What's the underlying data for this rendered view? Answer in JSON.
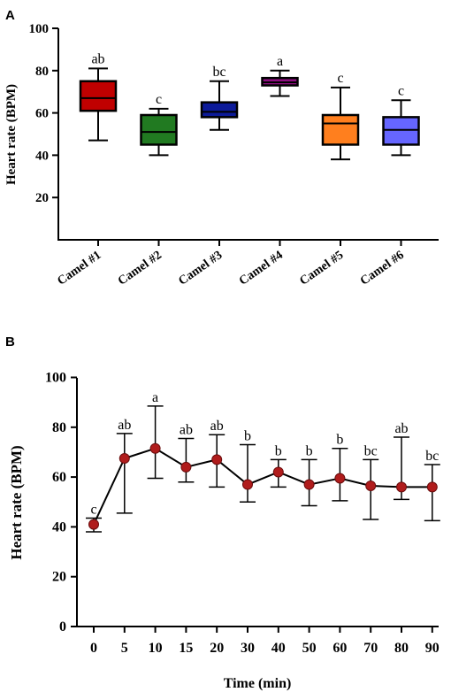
{
  "chart_data": [
    {
      "panel": "A",
      "type": "box",
      "ylabel": "Heart rate (BPM)",
      "xlabel": "",
      "ylim": [
        20,
        100
      ],
      "yticks": [
        20,
        40,
        60,
        80,
        100
      ],
      "categories": [
        "Camel #1",
        "Camel #2",
        "Camel #3",
        "Camel #4",
        "Camel #5",
        "Camel #6"
      ],
      "boxes": [
        {
          "min": 47,
          "q1": 61,
          "median": 67,
          "q3": 75,
          "max": 81
        },
        {
          "min": 40,
          "q1": 45,
          "median": 51,
          "q3": 59,
          "max": 62
        },
        {
          "min": 52,
          "q1": 58,
          "median": 60.5,
          "q3": 65,
          "max": 75
        },
        {
          "min": 68,
          "q1": 73,
          "median": 74.5,
          "q3": 76.5,
          "max": 80
        },
        {
          "min": 38,
          "q1": 45,
          "median": 55,
          "q3": 59,
          "max": 72
        },
        {
          "min": 40,
          "q1": 45,
          "median": 52,
          "q3": 58,
          "max": 66
        }
      ],
      "colors": [
        "#c00000",
        "#217a21",
        "#0c1a99",
        "#8e0f80",
        "#ff7f1e",
        "#6666ff"
      ],
      "annotations": [
        "ab",
        "c",
        "bc",
        "a",
        "c",
        "c"
      ]
    },
    {
      "panel": "B",
      "type": "line",
      "ylabel": "Heart rate (BPM)",
      "xlabel": "Time (min)",
      "ylim": [
        0,
        100
      ],
      "yticks": [
        0,
        20,
        40,
        60,
        80,
        100
      ],
      "x": [
        "0",
        "5",
        "10",
        "15",
        "20",
        "30",
        "40",
        "50",
        "60",
        "70",
        "80",
        "90"
      ],
      "mean": [
        41,
        67.5,
        71.5,
        64,
        67,
        57,
        62,
        57,
        59.5,
        56.5,
        56,
        56
      ],
      "upper": [
        43.5,
        77.5,
        88.5,
        75.5,
        77,
        73,
        67,
        67,
        71.5,
        67,
        76,
        65
      ],
      "lower": [
        38,
        45.5,
        59.5,
        58,
        56,
        50,
        56,
        48.5,
        50.5,
        43,
        51,
        42.5
      ],
      "marker_color": "#b01c1c",
      "annotations": [
        "c",
        "ab",
        "a",
        "ab",
        "ab",
        "b",
        "b",
        "b",
        "b",
        "bc",
        "ab",
        "bc"
      ]
    }
  ]
}
